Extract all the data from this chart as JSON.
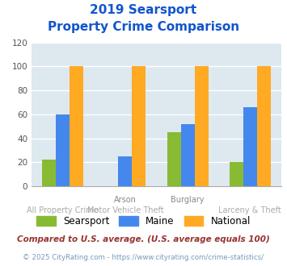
{
  "title_line1": "2019 Searsport",
  "title_line2": "Property Crime Comparison",
  "cat_labels_top": [
    "",
    "Arson",
    "Burglary",
    ""
  ],
  "cat_labels_bottom": [
    "All Property Crime",
    "Motor Vehicle Theft",
    "",
    "Larceny & Theft"
  ],
  "searsport": [
    22,
    0,
    45,
    20
  ],
  "maine": [
    60,
    25,
    52,
    66
  ],
  "national": [
    100,
    100,
    100,
    100
  ],
  "colors": {
    "searsport": "#88bb33",
    "maine": "#4488ee",
    "national": "#ffaa22"
  },
  "ylim": [
    0,
    120
  ],
  "yticks": [
    0,
    20,
    40,
    60,
    80,
    100,
    120
  ],
  "legend_labels": [
    "Searsport",
    "Maine",
    "National"
  ],
  "footnote1": "Compared to U.S. average. (U.S. average equals 100)",
  "footnote2": "© 2025 CityRating.com - https://www.cityrating.com/crime-statistics/",
  "title_color": "#1155cc",
  "footnote1_color": "#993333",
  "footnote2_color": "#7799bb",
  "bg_color": "#dde8ef",
  "grid_color": "#ffffff"
}
